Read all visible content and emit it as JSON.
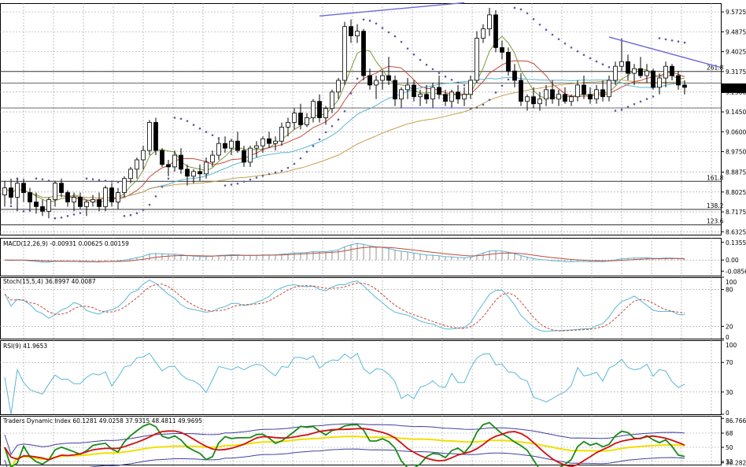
{
  "chart_data": [
    {
      "type": "candlestick",
      "panel": "price",
      "price_axis_ticks": [
        "9.5725",
        "9.4875",
        "9.4025",
        "9.3175",
        "9.2300",
        "9.1450",
        "9.0600",
        "8.9750",
        "8.8875",
        "8.8025",
        "8.7175",
        "8.6325"
      ],
      "ylim": [
        8.62,
        9.61
      ],
      "current_price_label": "9.2464",
      "fib_labels": [
        "261.8",
        "161.8",
        "138.2",
        "123.6"
      ],
      "fib_levels": [
        9.318,
        8.848,
        8.728,
        8.662
      ],
      "horizontal_levels": [
        9.268,
        9.162
      ],
      "candles": [
        [
          8.79,
          8.85,
          8.74,
          8.82
        ],
        [
          8.82,
          8.86,
          8.75,
          8.78
        ],
        [
          8.78,
          8.86,
          8.72,
          8.84
        ],
        [
          8.84,
          8.86,
          8.76,
          8.8
        ],
        [
          8.8,
          8.82,
          8.73,
          8.76
        ],
        [
          8.76,
          8.8,
          8.71,
          8.74
        ],
        [
          8.74,
          8.77,
          8.7,
          8.72
        ],
        [
          8.72,
          8.78,
          8.69,
          8.77
        ],
        [
          8.77,
          8.85,
          8.74,
          8.84
        ],
        [
          8.84,
          8.86,
          8.78,
          8.8
        ],
        [
          8.8,
          8.81,
          8.74,
          8.76
        ],
        [
          8.76,
          8.8,
          8.72,
          8.78
        ],
        [
          8.78,
          8.8,
          8.73,
          8.74
        ],
        [
          8.74,
          8.77,
          8.7,
          8.76
        ],
        [
          8.76,
          8.79,
          8.74,
          8.77
        ],
        [
          8.77,
          8.8,
          8.72,
          8.74
        ],
        [
          8.74,
          8.83,
          8.72,
          8.82
        ],
        [
          8.82,
          8.84,
          8.74,
          8.76
        ],
        [
          8.76,
          8.82,
          8.73,
          8.8
        ],
        [
          8.8,
          8.87,
          8.78,
          8.86
        ],
        [
          8.86,
          8.91,
          8.84,
          8.9
        ],
        [
          8.9,
          8.95,
          8.86,
          8.94
        ],
        [
          8.94,
          9.0,
          8.9,
          8.98
        ],
        [
          8.98,
          9.11,
          8.96,
          9.1
        ],
        [
          9.1,
          9.12,
          8.96,
          8.98
        ],
        [
          8.98,
          8.99,
          8.91,
          8.92
        ],
        [
          8.92,
          8.94,
          8.87,
          8.91
        ],
        [
          8.91,
          8.98,
          8.89,
          8.96
        ],
        [
          8.96,
          8.99,
          8.88,
          8.9
        ],
        [
          8.9,
          8.92,
          8.83,
          8.87
        ],
        [
          8.87,
          8.9,
          8.84,
          8.89
        ],
        [
          8.89,
          8.92,
          8.85,
          8.88
        ],
        [
          8.88,
          8.95,
          8.86,
          8.93
        ],
        [
          8.93,
          8.98,
          8.91,
          8.96
        ],
        [
          8.96,
          9.03,
          8.94,
          9.01
        ],
        [
          9.01,
          9.04,
          8.97,
          8.99
        ],
        [
          8.99,
          9.03,
          8.96,
          9.02
        ],
        [
          9.02,
          9.06,
          8.97,
          8.98
        ],
        [
          8.98,
          9.0,
          8.91,
          8.93
        ],
        [
          8.93,
          9.0,
          8.91,
          8.99
        ],
        [
          8.99,
          9.02,
          8.95,
          9.0
        ],
        [
          9.0,
          9.04,
          8.97,
          9.03
        ],
        [
          9.03,
          9.06,
          8.99,
          9.01
        ],
        [
          9.01,
          9.04,
          8.98,
          9.02
        ],
        [
          9.02,
          9.1,
          9.0,
          9.08
        ],
        [
          9.08,
          9.12,
          9.04,
          9.1
        ],
        [
          9.1,
          9.16,
          9.07,
          9.14
        ],
        [
          9.14,
          9.18,
          9.07,
          9.09
        ],
        [
          9.09,
          9.14,
          9.08,
          9.12
        ],
        [
          9.12,
          9.2,
          9.1,
          9.19
        ],
        [
          9.19,
          9.22,
          9.1,
          9.12
        ],
        [
          9.12,
          9.17,
          9.09,
          9.16
        ],
        [
          9.16,
          9.24,
          9.14,
          9.23
        ],
        [
          9.23,
          9.29,
          9.2,
          9.28
        ],
        [
          9.28,
          9.53,
          9.26,
          9.51
        ],
        [
          9.51,
          9.54,
          9.44,
          9.47
        ],
        [
          9.47,
          9.52,
          9.44,
          9.49
        ],
        [
          9.49,
          9.5,
          9.28,
          9.3
        ],
        [
          9.3,
          9.33,
          9.24,
          9.26
        ],
        [
          9.26,
          9.3,
          9.2,
          9.28
        ],
        [
          9.28,
          9.32,
          9.24,
          9.3
        ],
        [
          9.3,
          9.38,
          9.26,
          9.28
        ],
        [
          9.28,
          9.3,
          9.17,
          9.2
        ],
        [
          9.2,
          9.25,
          9.16,
          9.24
        ],
        [
          9.24,
          9.29,
          9.2,
          9.26
        ],
        [
          9.26,
          9.28,
          9.19,
          9.21
        ],
        [
          9.21,
          9.24,
          9.17,
          9.22
        ],
        [
          9.22,
          9.26,
          9.18,
          9.2
        ],
        [
          9.2,
          9.27,
          9.16,
          9.25
        ],
        [
          9.25,
          9.3,
          9.2,
          9.22
        ],
        [
          9.22,
          9.24,
          9.17,
          9.19
        ],
        [
          9.19,
          9.24,
          9.16,
          9.23
        ],
        [
          9.23,
          9.26,
          9.18,
          9.2
        ],
        [
          9.2,
          9.25,
          9.17,
          9.22
        ],
        [
          9.22,
          9.3,
          9.2,
          9.28
        ],
        [
          9.28,
          9.49,
          9.27,
          9.46
        ],
        [
          9.46,
          9.52,
          9.44,
          9.5
        ],
        [
          9.5,
          9.59,
          9.47,
          9.56
        ],
        [
          9.56,
          9.58,
          9.4,
          9.42
        ],
        [
          9.42,
          9.45,
          9.37,
          9.4
        ],
        [
          9.4,
          9.42,
          9.3,
          9.32
        ],
        [
          9.32,
          9.35,
          9.25,
          9.28
        ],
        [
          9.28,
          9.31,
          9.17,
          9.19
        ],
        [
          9.19,
          9.22,
          9.15,
          9.21
        ],
        [
          9.21,
          9.25,
          9.16,
          9.18
        ],
        [
          9.18,
          9.23,
          9.15,
          9.2
        ],
        [
          9.2,
          9.26,
          9.17,
          9.24
        ],
        [
          9.24,
          9.28,
          9.18,
          9.2
        ],
        [
          9.2,
          9.24,
          9.17,
          9.22
        ],
        [
          9.22,
          9.25,
          9.18,
          9.19
        ],
        [
          9.19,
          9.22,
          9.17,
          9.21
        ],
        [
          9.21,
          9.28,
          9.19,
          9.26
        ],
        [
          9.26,
          9.3,
          9.2,
          9.22
        ],
        [
          9.22,
          9.25,
          9.18,
          9.2
        ],
        [
          9.2,
          9.26,
          9.18,
          9.24
        ],
        [
          9.24,
          9.28,
          9.19,
          9.21
        ],
        [
          9.21,
          9.3,
          9.19,
          9.28
        ],
        [
          9.28,
          9.36,
          9.26,
          9.34
        ],
        [
          9.34,
          9.46,
          9.32,
          9.36
        ],
        [
          9.36,
          9.39,
          9.28,
          9.31
        ],
        [
          9.31,
          9.35,
          9.26,
          9.33
        ],
        [
          9.33,
          9.38,
          9.29,
          9.3
        ],
        [
          9.3,
          9.35,
          9.27,
          9.32
        ],
        [
          9.32,
          9.33,
          9.24,
          9.25
        ],
        [
          9.25,
          9.31,
          9.22,
          9.29
        ],
        [
          9.29,
          9.36,
          9.25,
          9.34
        ],
        [
          9.34,
          9.35,
          9.28,
          9.3
        ],
        [
          9.3,
          9.32,
          9.24,
          9.26
        ],
        [
          9.26,
          9.28,
          9.22,
          9.25
        ]
      ]
    },
    {
      "type": "line",
      "panel": "macd",
      "header": "MACD(12,26,9) -0.00931 0.00625 0.00159",
      "axis_ticks": [
        "0.13553",
        "0.00",
        "-0.08564"
      ],
      "ylim": [
        -0.12,
        0.17
      ]
    },
    {
      "type": "line",
      "panel": "stochastic",
      "header": "Stoch(15,5,4) 36.8997 40.0087",
      "axis_ticks": [
        "100",
        "80",
        "20",
        "0"
      ],
      "ylim": [
        0,
        100
      ]
    },
    {
      "type": "line",
      "panel": "rsi",
      "header": "RSI(9) 41.9653",
      "axis_ticks": [
        "100",
        "70",
        "30",
        "0"
      ],
      "ylim": [
        0,
        100
      ]
    },
    {
      "type": "line",
      "panel": "tdi",
      "header": "Traders Dynamic Index 60.1281 49.0258 37.9315 48.4811 49.9695",
      "axis_ticks": [
        "86.7665",
        "68",
        "50",
        "32",
        "30.2828"
      ],
      "ylim": [
        28,
        90
      ]
    }
  ],
  "colors": {
    "bull_candle": "#ffffff",
    "bear_candle": "#000000",
    "ma_fast": "#7a9a3a",
    "ma_mid": "#c24a3a",
    "ma_slow": "#5ab8d6",
    "ma_long": "#c8a050",
    "sar": "#5a5aa8",
    "trendline": "#6a6ad8",
    "macd_line": "#5ab8d6",
    "macd_signal": "#c24a3a",
    "stoch_main": "#5ab8d6",
    "stoch_signal": "#c24a3a",
    "rsi": "#5ab8d6",
    "tdi_green": "#1a8a1a",
    "tdi_red": "#d01010",
    "tdi_yellow": "#f0e000",
    "tdi_band": "#4040a0"
  }
}
